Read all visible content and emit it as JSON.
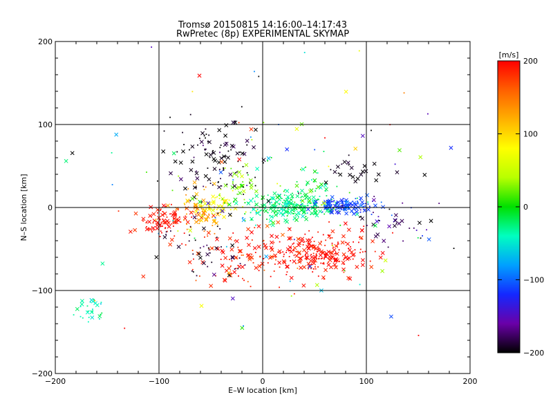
{
  "chart_data": {
    "type": "scatter",
    "title": "Tromsø 20150815 14:16:00–14:17:43",
    "subtitle": "RwPretec (8p) EXPERIMENTAL SKYMAP",
    "xlabel": "E–W location [km]",
    "ylabel": "N–S location [km]",
    "xlim": [
      -200,
      200
    ],
    "ylim": [
      -200,
      200
    ],
    "xticks": [
      "−200",
      "−100",
      "0",
      "100",
      "200"
    ],
    "yticks": [
      "−200",
      "−100",
      "0",
      "100",
      "200"
    ],
    "grid": true,
    "marker_types": [
      "dot",
      "x"
    ],
    "colorbar": {
      "label": "[m/s]",
      "range": [
        -200,
        200
      ],
      "ticks": [
        "200",
        "100",
        "0",
        "−100",
        "−200"
      ],
      "colors": [
        "#000000",
        "#6a00a8",
        "#1428ff",
        "#00a0ff",
        "#00ffc0",
        "#00e000",
        "#b8ff00",
        "#ffff00",
        "#ffb000",
        "#ff6000",
        "#ff0000"
      ]
    },
    "clusters": [
      {
        "desc": "red_southeast",
        "cx": 55,
        "cy": -55,
        "sx": 25,
        "sy": 12,
        "count": 240,
        "v": 195,
        "vsd": 10
      },
      {
        "desc": "red_southwest",
        "cx": -95,
        "cy": -15,
        "sx": 14,
        "sy": 9,
        "count": 90,
        "v": 195,
        "vsd": 10
      },
      {
        "desc": "red_south",
        "cx": -25,
        "cy": -60,
        "sx": 30,
        "sy": 20,
        "count": 110,
        "v": 185,
        "vsd": 15
      },
      {
        "desc": "orange_west",
        "cx": -60,
        "cy": -5,
        "sx": 12,
        "sy": 14,
        "count": 55,
        "v": 135,
        "vsd": 15
      },
      {
        "desc": "yellow_west",
        "cx": -45,
        "cy": 3,
        "sx": 12,
        "sy": 10,
        "count": 60,
        "v": 85,
        "vsd": 15
      },
      {
        "desc": "green_north",
        "cx": -25,
        "cy": 25,
        "sx": 12,
        "sy": 18,
        "count": 40,
        "v": 30,
        "vsd": 20
      },
      {
        "desc": "cyan_center",
        "cx": 25,
        "cy": 0,
        "sx": 20,
        "sy": 8,
        "count": 230,
        "v": -25,
        "vsd": 15
      },
      {
        "desc": "cyan_northeast",
        "cx": 45,
        "cy": 18,
        "sx": 14,
        "sy": 12,
        "count": 50,
        "v": -10,
        "vsd": 20
      },
      {
        "desc": "blue_east",
        "cx": 80,
        "cy": 2,
        "sx": 14,
        "sy": 5,
        "count": 130,
        "v": -110,
        "vsd": 10
      },
      {
        "desc": "black_north",
        "cx": -45,
        "cy": 60,
        "sx": 22,
        "sy": 22,
        "count": 110,
        "v": -195,
        "vsd": 10
      },
      {
        "desc": "black_northeast",
        "cx": 80,
        "cy": 45,
        "sx": 20,
        "sy": 10,
        "count": 25,
        "v": -195,
        "vsd": 10
      },
      {
        "desc": "black_south",
        "cx": -50,
        "cy": -45,
        "sx": 22,
        "sy": 20,
        "count": 45,
        "v": -190,
        "vsd": 10
      },
      {
        "desc": "black_east",
        "cx": 135,
        "cy": -15,
        "sx": 25,
        "sy": 15,
        "count": 20,
        "v": -190,
        "vsd": 10
      },
      {
        "desc": "purple_east",
        "cx": 120,
        "cy": -10,
        "sx": 25,
        "sy": 15,
        "count": 20,
        "v": -150,
        "vsd": 20
      },
      {
        "desc": "cyan_southwest",
        "cx": -165,
        "cy": -125,
        "sx": 8,
        "sy": 6,
        "count": 30,
        "v": -40,
        "vsd": 10
      },
      {
        "desc": "scatter_all",
        "cx": 0,
        "cy": 0,
        "sx": 90,
        "sy": 80,
        "count": 120,
        "v": 0,
        "vsd": 150
      }
    ]
  }
}
